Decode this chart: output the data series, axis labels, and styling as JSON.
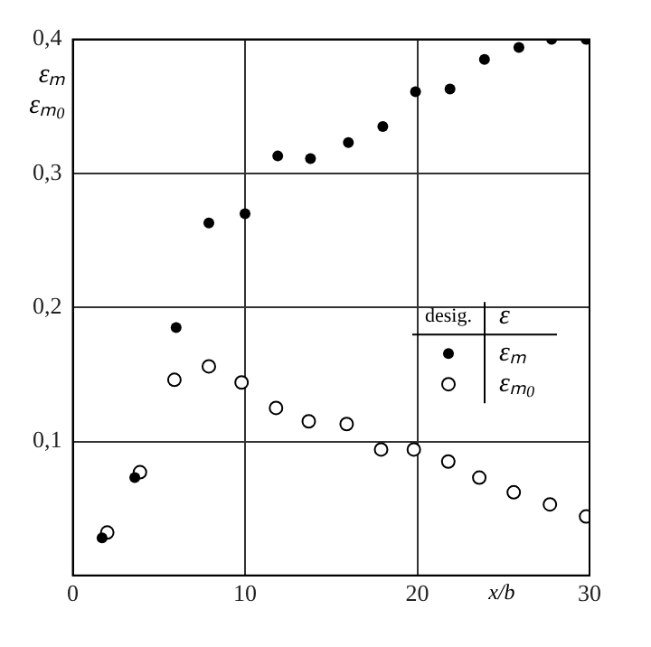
{
  "chart_data": {
    "type": "scatter",
    "xlabel": "x/b",
    "ylabel": "εₘ εₘ₀",
    "legend_title": "desig.",
    "annotations": [
      "ε"
    ],
    "xlim": [
      0,
      30
    ],
    "xticks": [
      0,
      10,
      20,
      30
    ],
    "ylim": [
      0,
      0.4
    ],
    "yticks": [
      {
        "value": 0,
        "label": null
      },
      {
        "value": 0.1,
        "label": "0,1"
      },
      {
        "value": 0.2,
        "label": "0,2"
      },
      {
        "value": 0.3,
        "label": "0,3"
      },
      {
        "value": 0.4,
        "label": "0,4"
      }
    ],
    "grid": true,
    "legend": "right",
    "marker": "circle",
    "series": [
      {
        "name": "εₘ",
        "color": "#000000",
        "x": [
          1.7,
          3.6,
          6,
          7.9,
          10,
          11.9,
          13.8,
          16,
          18,
          19.9,
          21.9,
          23.9,
          25.9,
          27.8,
          29.8
        ],
        "values": [
          0.028,
          0.073,
          0.185,
          0.263,
          0.27,
          0.313,
          0.311,
          0.323,
          0.335,
          0.361,
          0.363,
          0.385,
          0.394,
          0.4,
          0.4
        ]
      },
      {
        "name": "εₘ₀",
        "color": "#000000",
        "x": [
          2,
          3.9,
          5.9,
          7.9,
          9.8,
          11.8,
          13.7,
          15.9,
          17.9,
          19.8,
          21.8,
          23.6,
          25.6,
          27.7,
          29.8
        ],
        "values": [
          0.032,
          0.077,
          0.146,
          0.156,
          0.144,
          0.125,
          0.115,
          0.113,
          0.094,
          0.094,
          0.085,
          0.073,
          0.062,
          0.053,
          0.044
        ]
      }
    ]
  }
}
